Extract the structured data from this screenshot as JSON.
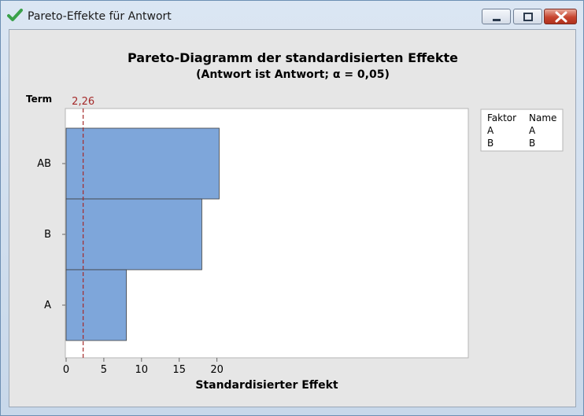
{
  "window": {
    "title": "Pareto-Effekte für Antwort",
    "icon": "green-checkmark-icon",
    "buttons": [
      "minimize-icon",
      "maximize-icon",
      "close-icon"
    ]
  },
  "chart_data": {
    "type": "bar",
    "orientation": "horizontal",
    "title": "Pareto-Diagramm der standardisierten Effekte",
    "subtitle": "(Antwort ist Antwort; α = 0,05)",
    "xlabel": "Standardisierter Effekt",
    "ylabel": "Term",
    "categories": [
      "AB",
      "B",
      "A"
    ],
    "values": [
      20.3,
      18.0,
      8.0
    ],
    "xlim": [
      0,
      21.5
    ],
    "xticks": [
      "0",
      "5",
      "10",
      "15",
      "20"
    ],
    "xtick_values": [
      0,
      5,
      10,
      15,
      20
    ],
    "reference_line": {
      "value": 2.26,
      "label": "2,26",
      "color": "#a52a2a"
    },
    "bar_color": "#7ea6da",
    "grid": false,
    "legend": {
      "placement": "right",
      "headers": [
        "Faktor",
        "Name"
      ],
      "rows": [
        [
          "A",
          "A"
        ],
        [
          "B",
          "B"
        ]
      ]
    }
  }
}
